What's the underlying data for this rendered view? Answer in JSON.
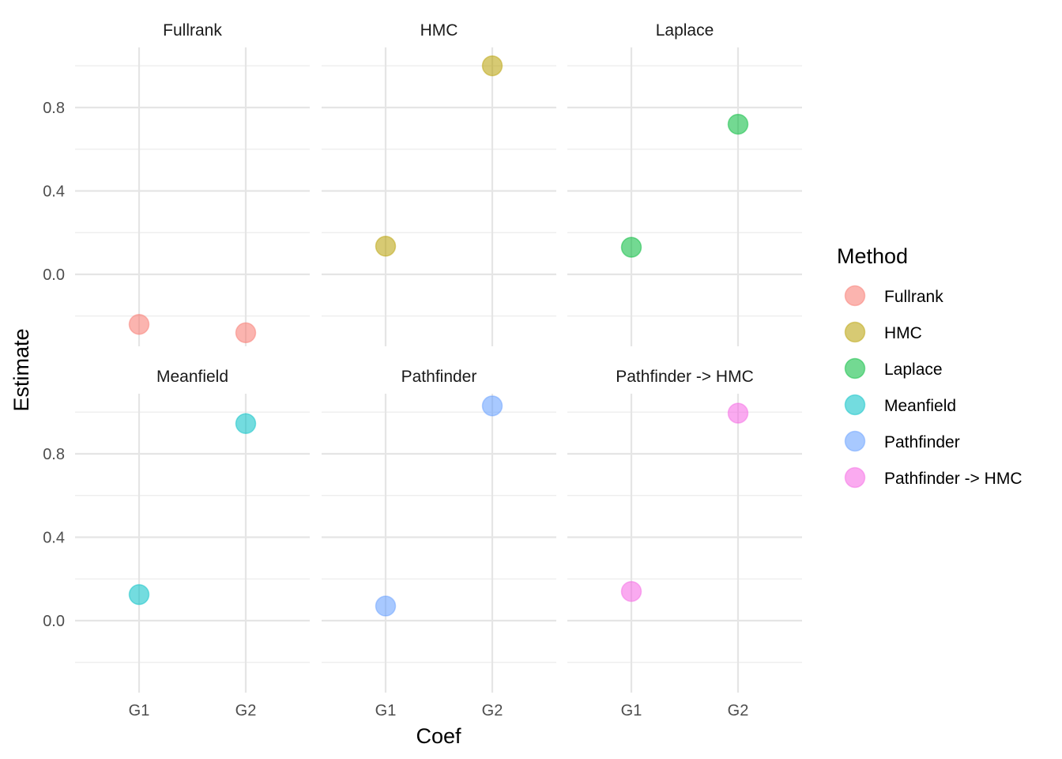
{
  "chart_data": {
    "type": "scatter",
    "facet_by": "Method",
    "facet_layout": "3 columns x 2 rows",
    "xlabel": "Coef",
    "ylabel": "Estimate",
    "categories": [
      "G1",
      "G2"
    ],
    "y_ticks": [
      "0.0",
      "0.4",
      "0.8"
    ],
    "y_tick_values": [
      0.0,
      0.4,
      0.8
    ],
    "ylim": [
      -0.34,
      1.1
    ],
    "grid": true,
    "legend": {
      "title": "Method",
      "position": "right",
      "entries": [
        "Fullrank",
        "HMC",
        "Laplace",
        "Meanfield",
        "Pathfinder",
        "Pathfinder -> HMC"
      ]
    },
    "series": [
      {
        "name": "Fullrank",
        "color": "#F8766D",
        "values": [
          -0.24,
          -0.28
        ]
      },
      {
        "name": "HMC",
        "color": "#B79F00",
        "values": [
          0.135,
          1.0
        ]
      },
      {
        "name": "Laplace",
        "color": "#00BA38",
        "values": [
          0.13,
          0.72
        ]
      },
      {
        "name": "Meanfield",
        "color": "#00BFC4",
        "values": [
          0.125,
          0.945
        ]
      },
      {
        "name": "Pathfinder",
        "color": "#619CFF",
        "values": [
          0.07,
          1.03
        ]
      },
      {
        "name": "Pathfinder -> HMC",
        "color": "#F564E3",
        "values": [
          0.14,
          0.995
        ]
      }
    ]
  }
}
